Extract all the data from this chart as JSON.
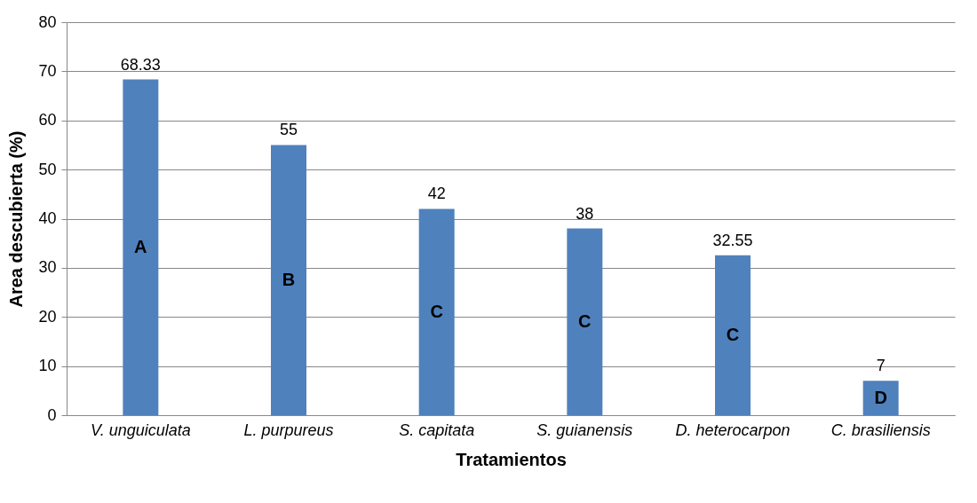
{
  "chart_data": {
    "type": "bar",
    "xlabel": "Tratamientos",
    "ylabel": "Area descubierta (%)",
    "categories": [
      "V. unguiculata",
      "L. purpureus",
      "S. capitata",
      "S. guianensis",
      "D. heterocarpon",
      "C. brasiliensis"
    ],
    "values": [
      68.33,
      55,
      42,
      38,
      32.55,
      7
    ],
    "color": "#4f81bd",
    "ylim": [
      0,
      80
    ],
    "yticks": [
      0,
      10,
      20,
      30,
      40,
      50,
      60,
      70,
      80
    ],
    "grid": "y",
    "data_labels": true,
    "annotations": [
      "A",
      "B",
      "C",
      "C",
      "C",
      "D"
    ]
  }
}
